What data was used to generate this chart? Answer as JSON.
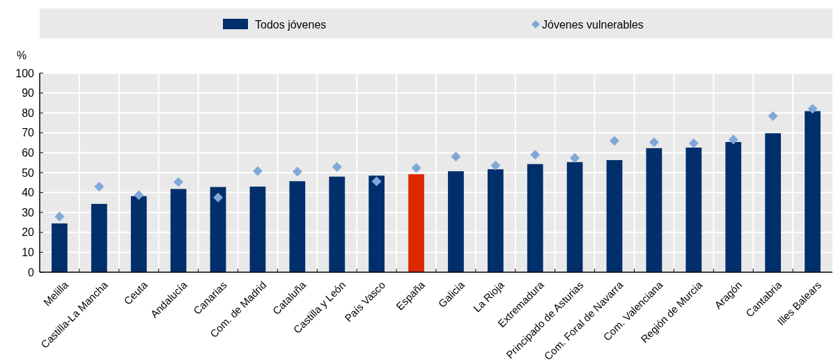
{
  "chart_data": {
    "type": "bar",
    "ylabel": "%",
    "categories": [
      "Melilla",
      "Castilla-La Mancha",
      "Ceuta",
      "Andalucía",
      "Canarias",
      "Com. de Madrid",
      "Cataluña",
      "Castilla y León",
      "País Vasco",
      "España",
      "Galicia",
      "La Rioja",
      "Extremadura",
      "Principado de Asturias",
      "Com. Foral de Navarra",
      "Com. Valenciana",
      "Región de Murcia",
      "Aragón",
      "Cantabria",
      "Illes Balears"
    ],
    "series": [
      {
        "name": "Todos jóvenes",
        "color": "#002f6c",
        "colors": [
          "#002f6c",
          "#002f6c",
          "#002f6c",
          "#002f6c",
          "#002f6c",
          "#002f6c",
          "#002f6c",
          "#002f6c",
          "#002f6c",
          "#dc2900",
          "#002f6c",
          "#002f6c",
          "#002f6c",
          "#002f6c",
          "#002f6c",
          "#002f6c",
          "#002f6c",
          "#002f6c",
          "#002f6c",
          "#002f6c"
        ],
        "values": [
          24.5,
          34.3,
          38.2,
          41.8,
          42.8,
          43,
          45.7,
          48,
          48.5,
          49.2,
          50.7,
          51.7,
          54.3,
          55.3,
          56.3,
          62.3,
          62.6,
          65.4,
          69.8,
          80.9
        ]
      },
      {
        "name": "Jóvenes vulnerables",
        "type": "scatter",
        "marker": "diamond",
        "color": "#7fa8d8",
        "values": [
          28,
          43,
          38.7,
          45.3,
          37.5,
          50.8,
          50.5,
          52.9,
          45.6,
          52.4,
          58,
          53.6,
          59,
          57.3,
          66,
          65.3,
          64.8,
          66.6,
          78.4,
          82.1
        ]
      }
    ],
    "ylim": [
      0,
      100
    ],
    "yticks": [
      0,
      10,
      20,
      30,
      40,
      50,
      60,
      70,
      80,
      90,
      100
    ],
    "grid": true,
    "legend": "top"
  }
}
